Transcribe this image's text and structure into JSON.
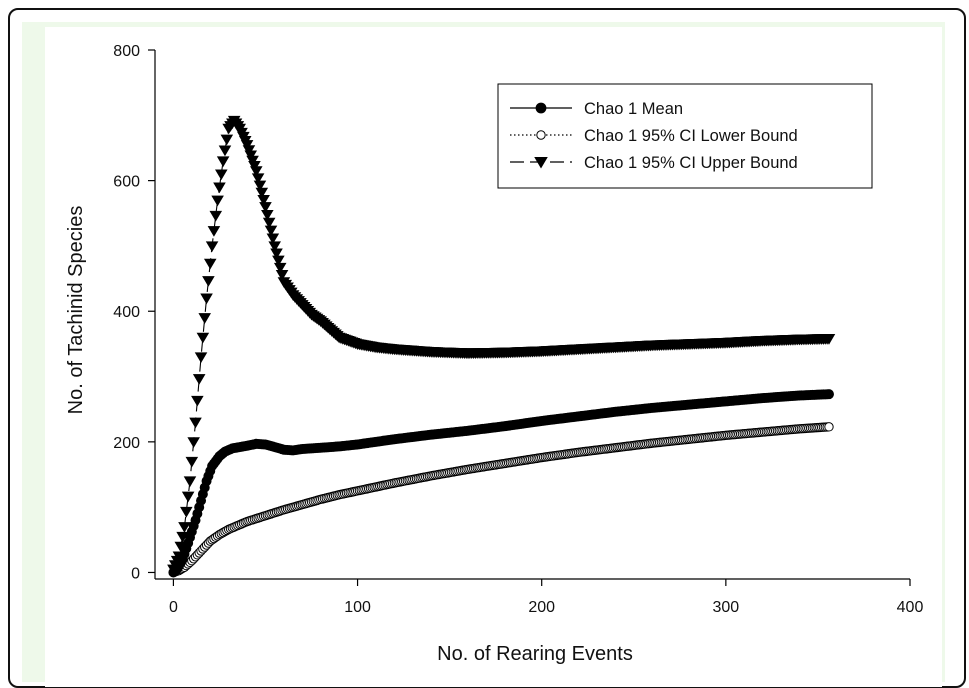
{
  "chart_data": {
    "type": "scatter",
    "title": "",
    "xlabel": "No. of Rearing Events",
    "ylabel": "No. of Tachinid Species",
    "xlim": [
      -10,
      400
    ],
    "ylim": [
      -10,
      800
    ],
    "x_ticks": [
      0,
      100,
      200,
      300,
      400
    ],
    "y_ticks": [
      0,
      200,
      400,
      600,
      800
    ],
    "grid": false,
    "legend_position": "top-right",
    "series": [
      {
        "name": "Chao 1 Mean",
        "marker": "filled-circle",
        "line": "solid",
        "color": "#000000",
        "keypoints": [
          [
            0,
            0
          ],
          [
            2,
            5
          ],
          [
            5,
            20
          ],
          [
            8,
            45
          ],
          [
            12,
            80
          ],
          [
            15,
            110
          ],
          [
            18,
            140
          ],
          [
            21,
            163
          ],
          [
            25,
            178
          ],
          [
            28,
            185
          ],
          [
            32,
            190
          ],
          [
            36,
            192
          ],
          [
            40,
            194
          ],
          [
            45,
            197
          ],
          [
            50,
            196
          ],
          [
            55,
            192
          ],
          [
            60,
            188
          ],
          [
            65,
            187
          ],
          [
            70,
            189
          ],
          [
            80,
            191
          ],
          [
            90,
            193
          ],
          [
            100,
            196
          ],
          [
            120,
            204
          ],
          [
            140,
            211
          ],
          [
            160,
            217
          ],
          [
            180,
            224
          ],
          [
            200,
            232
          ],
          [
            220,
            239
          ],
          [
            240,
            246
          ],
          [
            260,
            252
          ],
          [
            280,
            257
          ],
          [
            300,
            262
          ],
          [
            320,
            267
          ],
          [
            340,
            271
          ],
          [
            356,
            273
          ]
        ]
      },
      {
        "name": "Chao 1 95% CI Lower Bound",
        "marker": "open-circle",
        "line": "dotted",
        "color": "#000000",
        "keypoints": [
          [
            0,
            0
          ],
          [
            3,
            3
          ],
          [
            6,
            8
          ],
          [
            10,
            18
          ],
          [
            15,
            33
          ],
          [
            20,
            48
          ],
          [
            25,
            58
          ],
          [
            30,
            66
          ],
          [
            35,
            72
          ],
          [
            40,
            78
          ],
          [
            50,
            87
          ],
          [
            60,
            96
          ],
          [
            70,
            104
          ],
          [
            80,
            112
          ],
          [
            90,
            119
          ],
          [
            100,
            125
          ],
          [
            120,
            137
          ],
          [
            140,
            148
          ],
          [
            160,
            158
          ],
          [
            180,
            167
          ],
          [
            200,
            176
          ],
          [
            220,
            184
          ],
          [
            240,
            191
          ],
          [
            260,
            198
          ],
          [
            280,
            204
          ],
          [
            300,
            210
          ],
          [
            320,
            215
          ],
          [
            340,
            220
          ],
          [
            356,
            223
          ]
        ]
      },
      {
        "name": "Chao 1 95% CI Upper Bound",
        "marker": "filled-triangle-down",
        "line": "long-dash",
        "color": "#000000",
        "keypoints": [
          [
            0,
            5
          ],
          [
            3,
            25
          ],
          [
            6,
            70
          ],
          [
            9,
            140
          ],
          [
            12,
            230
          ],
          [
            15,
            330
          ],
          [
            18,
            420
          ],
          [
            21,
            500
          ],
          [
            24,
            570
          ],
          [
            27,
            630
          ],
          [
            30,
            680
          ],
          [
            33,
            692
          ],
          [
            36,
            680
          ],
          [
            40,
            655
          ],
          [
            45,
            615
          ],
          [
            50,
            560
          ],
          [
            55,
            500
          ],
          [
            60,
            445
          ],
          [
            65,
            425
          ],
          [
            70,
            410
          ],
          [
            75,
            395
          ],
          [
            80,
            385
          ],
          [
            90,
            360
          ],
          [
            100,
            350
          ],
          [
            110,
            345
          ],
          [
            120,
            342
          ],
          [
            140,
            338
          ],
          [
            160,
            336
          ],
          [
            180,
            337
          ],
          [
            200,
            339
          ],
          [
            220,
            342
          ],
          [
            240,
            345
          ],
          [
            260,
            348
          ],
          [
            280,
            350
          ],
          [
            300,
            352
          ],
          [
            320,
            355
          ],
          [
            340,
            357
          ],
          [
            356,
            358
          ]
        ]
      }
    ]
  }
}
